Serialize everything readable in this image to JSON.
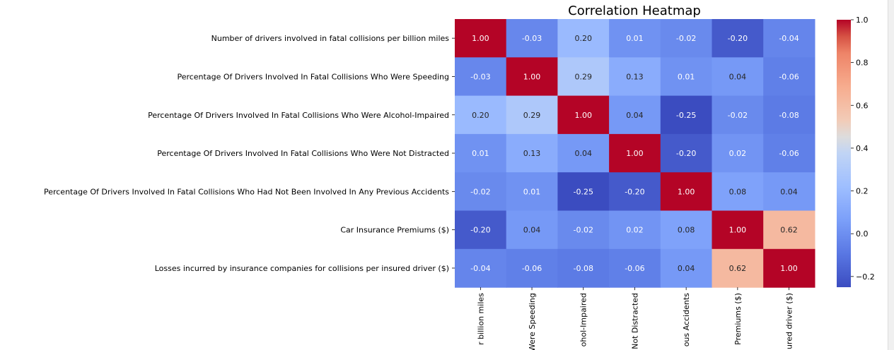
{
  "chart_data": {
    "type": "heatmap",
    "title": "Correlation Heatmap",
    "row_labels": [
      "Number of drivers involved in fatal collisions per billion miles",
      "Percentage Of Drivers Involved In Fatal Collisions Who Were Speeding",
      "Percentage Of Drivers Involved In Fatal Collisions Who Were Alcohol-Impaired",
      "Percentage Of Drivers Involved In Fatal Collisions Who Were Not Distracted",
      "Percentage Of Drivers Involved In Fatal Collisions Who Had Not Been Involved In Any Previous Accidents",
      "Car Insurance Premiums ($)",
      "Losses incurred by insurance companies for collisions per insured driver ($)"
    ],
    "col_labels": [
      "r billion miles",
      "Were Speeding",
      "ohol-Impaired",
      "Not Distracted",
      "ous Accidents",
      "Premiums ($)",
      "ured driver ($)"
    ],
    "values": [
      [
        1.0,
        -0.03,
        0.2,
        0.01,
        -0.02,
        -0.2,
        -0.04
      ],
      [
        -0.03,
        1.0,
        0.29,
        0.13,
        0.01,
        0.04,
        -0.06
      ],
      [
        0.2,
        0.29,
        1.0,
        0.04,
        -0.25,
        -0.02,
        -0.08
      ],
      [
        0.01,
        0.13,
        0.04,
        1.0,
        -0.2,
        0.02,
        -0.06
      ],
      [
        -0.02,
        0.01,
        -0.25,
        -0.2,
        1.0,
        0.08,
        0.04
      ],
      [
        -0.2,
        0.04,
        -0.02,
        0.02,
        0.08,
        1.0,
        0.62
      ],
      [
        -0.04,
        -0.06,
        -0.08,
        -0.06,
        0.04,
        0.62,
        1.0
      ]
    ],
    "annot": true,
    "colormap": "coolwarm",
    "vmin": -0.25,
    "vmax": 1.0,
    "colorbar_ticks": [
      -0.2,
      0.0,
      0.2,
      0.4,
      0.6,
      0.8,
      1.0
    ],
    "colorbar_tick_labels": [
      "−0.2",
      "0.0",
      "0.2",
      "0.4",
      "0.6",
      "0.8",
      "1.0"
    ]
  }
}
